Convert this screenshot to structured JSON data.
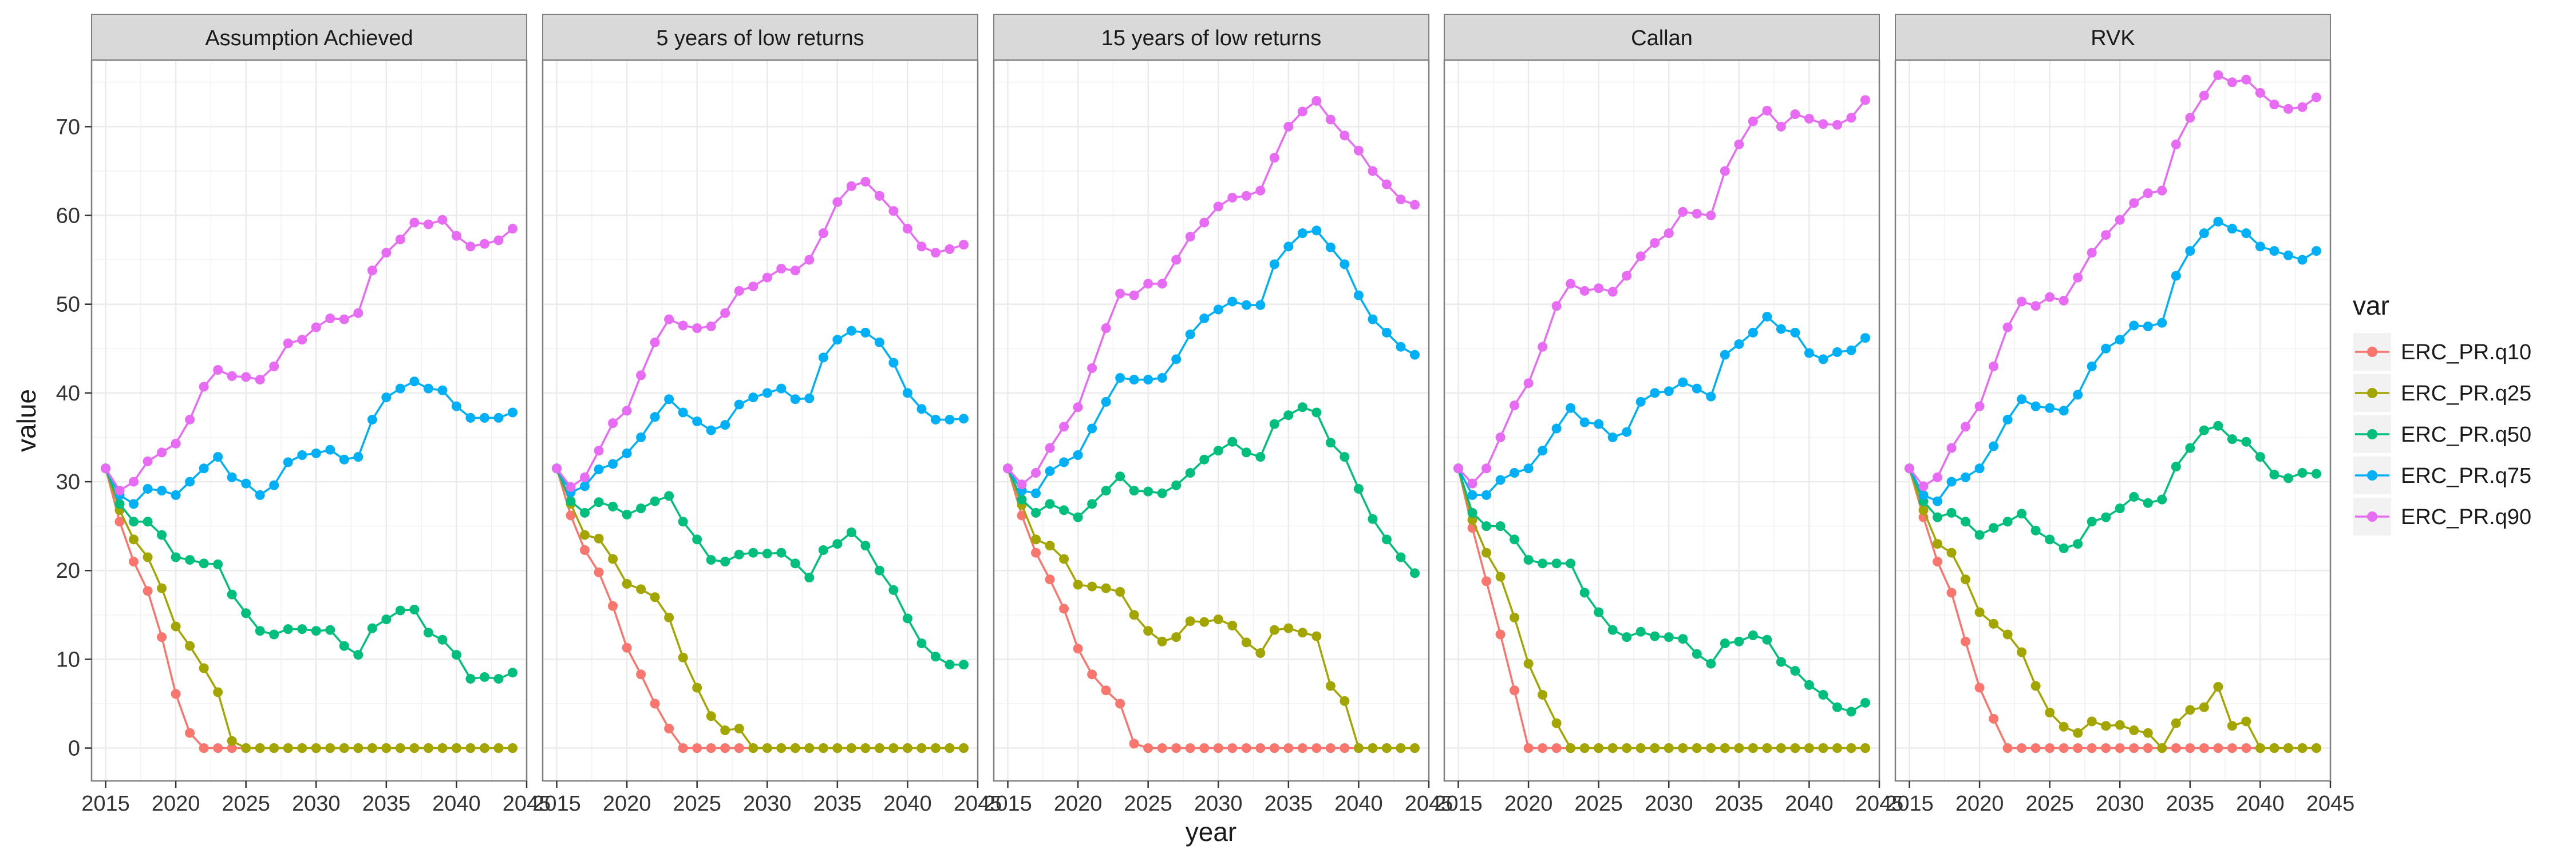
{
  "chart_data": {
    "type": "line",
    "ylabel": "value",
    "xlabel": "year",
    "xlim": [
      2014,
      2045
    ],
    "ylim": [
      -3.7,
      77.5
    ],
    "x_ticks": [
      2015,
      2020,
      2025,
      2030,
      2035,
      2040,
      2045
    ],
    "y_ticks": [
      0,
      10,
      20,
      30,
      40,
      50,
      60,
      70
    ],
    "grid": true,
    "legend": {
      "title": "var",
      "position": "right",
      "entries": [
        "ERC_PR.q10",
        "ERC_PR.q25",
        "ERC_PR.q50",
        "ERC_PR.q75",
        "ERC_PR.q90"
      ]
    },
    "colors": {
      "ERC_PR.q10": "#F8766D",
      "ERC_PR.q25": "#A3A500",
      "ERC_PR.q50": "#00BF7D",
      "ERC_PR.q75": "#00B0F6",
      "ERC_PR.q90": "#E76BF3"
    },
    "x": [
      2015,
      2016,
      2017,
      2018,
      2019,
      2020,
      2021,
      2022,
      2023,
      2024,
      2025,
      2026,
      2027,
      2028,
      2029,
      2030,
      2031,
      2032,
      2033,
      2034,
      2035,
      2036,
      2037,
      2038,
      2039,
      2040,
      2041,
      2042,
      2043,
      2044
    ],
    "panels": [
      {
        "title": "Assumption Achieved",
        "series": [
          {
            "name": "ERC_PR.q10",
            "values": [
              31.5,
              25.5,
              21.0,
              17.7,
              12.5,
              6.1,
              1.7,
              0,
              0,
              0,
              0,
              0,
              0,
              0,
              0,
              0,
              0,
              0,
              0,
              0,
              0,
              0,
              0,
              0,
              0,
              0,
              0,
              0,
              0,
              0
            ]
          },
          {
            "name": "ERC_PR.q25",
            "values": [
              31.5,
              26.8,
              23.5,
              21.5,
              18.0,
              13.7,
              11.5,
              9.0,
              6.3,
              0.8,
              0,
              0,
              0,
              0,
              0,
              0,
              0,
              0,
              0,
              0,
              0,
              0,
              0,
              0,
              0,
              0,
              0,
              0,
              0,
              0
            ]
          },
          {
            "name": "ERC_PR.q50",
            "values": [
              31.5,
              27.5,
              25.5,
              25.5,
              24.0,
              21.5,
              21.2,
              20.8,
              20.7,
              17.3,
              15.2,
              13.2,
              12.8,
              13.4,
              13.4,
              13.2,
              13.3,
              11.5,
              10.5,
              13.5,
              14.5,
              15.5,
              15.6,
              13.0,
              12.2,
              10.5,
              7.8,
              8.0,
              7.8,
              8.5
            ]
          },
          {
            "name": "ERC_PR.q75",
            "values": [
              31.5,
              28.5,
              27.5,
              29.2,
              29.0,
              28.5,
              30.0,
              31.5,
              32.8,
              30.5,
              29.8,
              28.5,
              29.6,
              32.2,
              33.0,
              33.2,
              33.6,
              32.5,
              32.8,
              37.0,
              39.5,
              40.5,
              41.3,
              40.5,
              40.3,
              38.5,
              37.2,
              37.2,
              37.2,
              37.8
            ]
          },
          {
            "name": "ERC_PR.q90",
            "values": [
              31.5,
              29.0,
              30.0,
              32.3,
              33.3,
              34.3,
              37.0,
              40.7,
              42.6,
              41.9,
              41.8,
              41.5,
              43.0,
              45.6,
              46.0,
              47.4,
              48.4,
              48.3,
              49.0,
              53.8,
              55.8,
              57.3,
              59.2,
              59.0,
              59.5,
              57.7,
              56.5,
              56.8,
              57.2,
              58.5
            ]
          }
        ]
      },
      {
        "title": "5 years of low returns",
        "series": [
          {
            "name": "ERC_PR.q10",
            "values": [
              31.5,
              26.2,
              22.3,
              19.8,
              16.0,
              11.3,
              8.3,
              5.0,
              2.2,
              0,
              0,
              0,
              0,
              0,
              0,
              0,
              0,
              0,
              0,
              0,
              0,
              0,
              0,
              0,
              0,
              0,
              0,
              0,
              0,
              0
            ]
          },
          {
            "name": "ERC_PR.q25",
            "values": [
              31.5,
              27.5,
              24.0,
              23.6,
              21.3,
              18.5,
              17.9,
              17.0,
              14.7,
              10.2,
              6.8,
              3.6,
              2.0,
              2.2,
              0,
              0,
              0,
              0,
              0,
              0,
              0,
              0,
              0,
              0,
              0,
              0,
              0,
              0,
              0,
              0
            ]
          },
          {
            "name": "ERC_PR.q50",
            "values": [
              31.5,
              27.8,
              26.5,
              27.7,
              27.2,
              26.3,
              27.0,
              27.8,
              28.4,
              25.5,
              23.5,
              21.2,
              21.0,
              21.8,
              22.0,
              21.9,
              22.0,
              20.8,
              19.2,
              22.3,
              23.0,
              24.3,
              22.8,
              20.0,
              17.8,
              14.6,
              11.8,
              10.3,
              9.4,
              9.4
            ]
          },
          {
            "name": "ERC_PR.q75",
            "values": [
              31.5,
              28.8,
              29.5,
              31.4,
              32.0,
              33.2,
              35.0,
              37.3,
              39.3,
              37.8,
              36.8,
              35.8,
              36.4,
              38.7,
              39.5,
              40.0,
              40.5,
              39.3,
              39.4,
              44.0,
              46.0,
              47.0,
              46.8,
              45.7,
              43.4,
              40.0,
              38.2,
              37.0,
              37.0,
              37.1
            ]
          },
          {
            "name": "ERC_PR.q90",
            "values": [
              31.5,
              29.4,
              30.5,
              33.5,
              36.6,
              38.0,
              42.0,
              45.7,
              48.3,
              47.6,
              47.3,
              47.5,
              49.0,
              51.5,
              52.0,
              53.0,
              54.0,
              53.8,
              55.0,
              58.0,
              61.5,
              63.3,
              63.8,
              62.2,
              60.5,
              58.5,
              56.5,
              55.8,
              56.2,
              56.7
            ]
          }
        ]
      },
      {
        "title": "15 years of low returns",
        "series": [
          {
            "name": "ERC_PR.q10",
            "values": [
              31.5,
              26.2,
              22.0,
              19.0,
              15.7,
              11.2,
              8.3,
              6.5,
              5.0,
              0.5,
              0,
              0,
              0,
              0,
              0,
              0,
              0,
              0,
              0,
              0,
              0,
              0,
              0,
              0,
              0,
              0,
              0,
              0,
              0,
              0
            ]
          },
          {
            "name": "ERC_PR.q25",
            "values": [
              31.5,
              27.4,
              23.5,
              22.8,
              21.3,
              18.4,
              18.2,
              18.0,
              17.6,
              15.0,
              13.2,
              12.0,
              12.5,
              14.3,
              14.2,
              14.5,
              13.8,
              11.9,
              10.7,
              13.3,
              13.5,
              13.0,
              12.6,
              7.0,
              5.3,
              0,
              0,
              0,
              0,
              0
            ]
          },
          {
            "name": "ERC_PR.q50",
            "values": [
              31.5,
              28.0,
              26.5,
              27.5,
              26.8,
              26.0,
              27.5,
              29.0,
              30.6,
              29.0,
              28.9,
              28.7,
              29.6,
              31.0,
              32.5,
              33.5,
              34.5,
              33.3,
              32.8,
              36.5,
              37.5,
              38.4,
              37.8,
              34.4,
              32.8,
              29.2,
              25.8,
              23.5,
              21.5,
              19.7
            ]
          },
          {
            "name": "ERC_PR.q75",
            "values": [
              31.5,
              29.0,
              28.7,
              31.2,
              32.2,
              33.0,
              36.0,
              39.0,
              41.7,
              41.5,
              41.5,
              41.7,
              43.8,
              46.6,
              48.4,
              49.4,
              50.3,
              49.9,
              49.9,
              54.5,
              56.5,
              58.0,
              58.3,
              56.4,
              54.5,
              51.0,
              48.3,
              46.8,
              45.2,
              44.3
            ]
          },
          {
            "name": "ERC_PR.q90",
            "values": [
              31.5,
              29.7,
              31.0,
              33.8,
              36.2,
              38.4,
              42.8,
              47.3,
              51.2,
              51.0,
              52.3,
              52.3,
              55.0,
              57.6,
              59.2,
              61.0,
              62.0,
              62.2,
              62.8,
              66.5,
              70.0,
              71.7,
              72.9,
              70.8,
              69.0,
              67.3,
              65.0,
              63.5,
              61.8,
              61.2
            ]
          }
        ]
      },
      {
        "title": "Callan",
        "series": [
          {
            "name": "ERC_PR.q10",
            "values": [
              31.5,
              24.8,
              18.8,
              12.8,
              6.5,
              0,
              0,
              0,
              0,
              0,
              0,
              0,
              0,
              0,
              0,
              0,
              0,
              0,
              0,
              0,
              0,
              0,
              0,
              0,
              0,
              0,
              0,
              0,
              0,
              0
            ]
          },
          {
            "name": "ERC_PR.q25",
            "values": [
              31.5,
              25.7,
              22.0,
              19.3,
              14.7,
              9.5,
              6.0,
              2.8,
              0,
              0,
              0,
              0,
              0,
              0,
              0,
              0,
              0,
              0,
              0,
              0,
              0,
              0,
              0,
              0,
              0,
              0,
              0,
              0,
              0,
              0
            ]
          },
          {
            "name": "ERC_PR.q50",
            "values": [
              31.5,
              26.5,
              25.0,
              25.0,
              23.5,
              21.2,
              20.8,
              20.8,
              20.8,
              17.5,
              15.3,
              13.3,
              12.5,
              13.1,
              12.6,
              12.5,
              12.3,
              10.6,
              9.5,
              11.8,
              12.0,
              12.7,
              12.2,
              9.7,
              8.7,
              7.1,
              6.0,
              4.6,
              4.1,
              5.1
            ]
          },
          {
            "name": "ERC_PR.q75",
            "values": [
              31.5,
              28.5,
              28.5,
              30.2,
              31.0,
              31.5,
              33.5,
              36.0,
              38.3,
              36.7,
              36.5,
              35.0,
              35.6,
              39.0,
              40.0,
              40.2,
              41.2,
              40.5,
              39.6,
              44.3,
              45.5,
              46.8,
              48.6,
              47.2,
              46.8,
              44.5,
              43.8,
              44.6,
              44.8,
              46.2
            ]
          },
          {
            "name": "ERC_PR.q90",
            "values": [
              31.5,
              29.8,
              31.5,
              35.0,
              38.6,
              41.1,
              45.2,
              49.8,
              52.3,
              51.5,
              51.8,
              51.4,
              53.2,
              55.4,
              56.9,
              58.0,
              60.4,
              60.2,
              60.0,
              65.0,
              68.0,
              70.6,
              71.8,
              70.0,
              71.4,
              70.9,
              70.3,
              70.2,
              71.0,
              73.0
            ]
          }
        ]
      },
      {
        "title": "RVK",
        "series": [
          {
            "name": "ERC_PR.q10",
            "values": [
              31.5,
              26.0,
              21.0,
              17.5,
              12.0,
              6.8,
              3.3,
              0,
              0,
              0,
              0,
              0,
              0,
              0,
              0,
              0,
              0,
              0,
              0,
              0,
              0,
              0,
              0,
              0,
              0,
              0,
              0,
              0,
              0,
              0
            ]
          },
          {
            "name": "ERC_PR.q25",
            "values": [
              31.5,
              26.8,
              23.0,
              22.0,
              19.0,
              15.3,
              14.0,
              12.8,
              10.8,
              7.0,
              4.0,
              2.4,
              1.7,
              3.0,
              2.5,
              2.6,
              2.0,
              1.7,
              0,
              2.8,
              4.3,
              4.6,
              6.9,
              2.5,
              3.0,
              0,
              0,
              0,
              0,
              0
            ]
          },
          {
            "name": "ERC_PR.q50",
            "values": [
              31.5,
              27.8,
              26.0,
              26.5,
              25.5,
              24.0,
              24.8,
              25.5,
              26.4,
              24.5,
              23.5,
              22.5,
              23.0,
              25.5,
              26.0,
              27.0,
              28.3,
              27.6,
              28.0,
              31.7,
              33.8,
              35.8,
              36.3,
              34.8,
              34.5,
              32.8,
              30.8,
              30.4,
              31.0,
              30.9
            ]
          },
          {
            "name": "ERC_PR.q75",
            "values": [
              31.5,
              28.5,
              27.8,
              30.0,
              30.5,
              31.5,
              34.0,
              37.0,
              39.3,
              38.5,
              38.3,
              38.0,
              39.8,
              43.0,
              45.0,
              46.0,
              47.6,
              47.5,
              47.9,
              53.2,
              56.0,
              58.0,
              59.3,
              58.5,
              58.0,
              56.5,
              56.0,
              55.5,
              55.0,
              56.0
            ]
          },
          {
            "name": "ERC_PR.q90",
            "values": [
              31.5,
              29.5,
              30.5,
              33.8,
              36.2,
              38.5,
              43.0,
              47.4,
              50.3,
              49.8,
              50.8,
              50.4,
              53.0,
              55.8,
              57.8,
              59.5,
              61.4,
              62.5,
              62.8,
              68.0,
              71.0,
              73.5,
              75.8,
              75.0,
              75.3,
              73.8,
              72.5,
              72.0,
              72.2,
              73.3
            ]
          }
        ]
      }
    ]
  }
}
